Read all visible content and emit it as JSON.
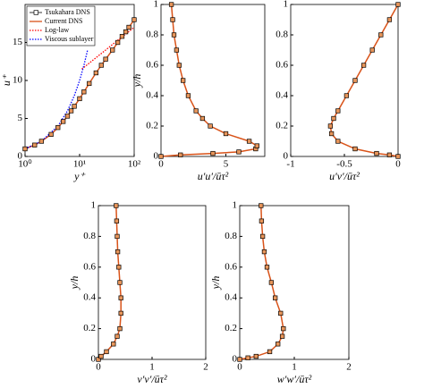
{
  "chart_data": [
    {
      "type": "line",
      "xscale": "log",
      "xlabel": "y⁺",
      "ylabel": "u⁺",
      "legend": "upper left",
      "xlim": [
        1,
        100
      ],
      "xticks": [
        {
          "value": 1,
          "label": "10⁰"
        },
        {
          "value": 10,
          "label": "10¹"
        },
        {
          "value": 100,
          "label": "10²"
        }
      ],
      "ylim": [
        0,
        20
      ],
      "yticks": [
        0,
        5,
        10,
        15
      ],
      "series": [
        {
          "name": "Tsukahara DNS",
          "style": "marker",
          "color": "#e8955a",
          "x": [
            1,
            1.5,
            2,
            3,
            4,
            5,
            6,
            7,
            8,
            10,
            12,
            15,
            20,
            25,
            30,
            40,
            50,
            60,
            70,
            80,
            100
          ],
          "y": [
            1,
            1.5,
            2,
            2.9,
            3.8,
            4.6,
            5.3,
            6,
            6.6,
            7.6,
            8.5,
            9.6,
            11,
            12,
            12.8,
            14,
            15,
            15.8,
            16.4,
            17,
            18
          ]
        },
        {
          "name": "Current DNS",
          "style": "solid",
          "color": "#d95319",
          "x": [
            1,
            1.5,
            2,
            3,
            4,
            5,
            6,
            7,
            8,
            10,
            12,
            15,
            20,
            25,
            30,
            40,
            50,
            60,
            70,
            80,
            100
          ],
          "y": [
            1,
            1.5,
            2,
            2.9,
            3.8,
            4.6,
            5.3,
            6,
            6.6,
            7.6,
            8.5,
            9.6,
            11,
            12,
            12.8,
            14,
            15,
            15.8,
            16.4,
            17,
            18
          ]
        },
        {
          "name": "Log-law",
          "style": "dotted",
          "color": "#ff0000",
          "x": [
            11,
            20,
            30,
            50,
            70,
            100
          ],
          "y": [
            11.5,
            13,
            14,
            15.3,
            16.1,
            17
          ]
        },
        {
          "name": "Viscous sublayer",
          "style": "dotted",
          "color": "#0000ff",
          "x": [
            1,
            2,
            4,
            6,
            8,
            10,
            12,
            14
          ],
          "y": [
            1,
            2,
            4,
            6,
            8,
            10,
            12,
            14
          ]
        }
      ]
    },
    {
      "type": "line",
      "xlabel": "u′u′/ūτ²",
      "ylabel": "y/h",
      "xlim": [
        0,
        8
      ],
      "xticks": [
        0,
        5
      ],
      "ylim": [
        0,
        1
      ],
      "yticks": [
        0,
        0.2,
        0.4,
        0.6,
        0.8,
        1
      ],
      "series": [
        {
          "name": "Tsukahara DNS",
          "style": "marker",
          "color": "#e8955a",
          "x": [
            0,
            1.5,
            4,
            6,
            7.3,
            7.4,
            6.8,
            5,
            3.8,
            3.2,
            2.7,
            2.1,
            1.7,
            1.4,
            1.2,
            1,
            0.9,
            0.8
          ],
          "y": [
            0,
            0.01,
            0.02,
            0.03,
            0.05,
            0.07,
            0.1,
            0.15,
            0.2,
            0.25,
            0.3,
            0.4,
            0.5,
            0.6,
            0.7,
            0.8,
            0.9,
            1
          ]
        },
        {
          "name": "Current DNS",
          "style": "solid",
          "color": "#d95319",
          "x": [
            0,
            1.5,
            4,
            6,
            7.3,
            7.4,
            6.8,
            5,
            3.8,
            3.2,
            2.7,
            2.1,
            1.7,
            1.4,
            1.2,
            1,
            0.9,
            0.8
          ],
          "y": [
            0,
            0.01,
            0.02,
            0.03,
            0.05,
            0.07,
            0.1,
            0.15,
            0.2,
            0.25,
            0.3,
            0.4,
            0.5,
            0.6,
            0.7,
            0.8,
            0.9,
            1
          ]
        }
      ]
    },
    {
      "type": "line",
      "xlabel": "u′v′/ūτ²",
      "ylabel": "",
      "xlim": [
        -1,
        0
      ],
      "xticks": [
        -1,
        -0.5,
        0
      ],
      "ylim": [
        0,
        1
      ],
      "yticks": [
        0,
        0.2,
        0.4,
        0.6,
        0.8,
        1
      ],
      "series": [
        {
          "name": "Tsukahara DNS",
          "style": "marker",
          "color": "#e8955a",
          "x": [
            0,
            -0.08,
            -0.2,
            -0.4,
            -0.56,
            -0.62,
            -0.63,
            -0.6,
            -0.56,
            -0.48,
            -0.4,
            -0.32,
            -0.24,
            -0.16,
            -0.08,
            0
          ],
          "y": [
            0,
            0.01,
            0.02,
            0.05,
            0.1,
            0.15,
            0.2,
            0.25,
            0.3,
            0.4,
            0.5,
            0.6,
            0.7,
            0.8,
            0.9,
            1
          ]
        },
        {
          "name": "Current DNS",
          "style": "solid",
          "color": "#d95319",
          "x": [
            0,
            -0.08,
            -0.2,
            -0.4,
            -0.56,
            -0.62,
            -0.63,
            -0.6,
            -0.56,
            -0.48,
            -0.4,
            -0.32,
            -0.24,
            -0.16,
            -0.08,
            0
          ],
          "y": [
            0,
            0.01,
            0.02,
            0.05,
            0.1,
            0.15,
            0.2,
            0.25,
            0.3,
            0.4,
            0.5,
            0.6,
            0.7,
            0.8,
            0.9,
            1
          ]
        }
      ]
    },
    {
      "type": "line",
      "xlabel": "v′v′/ūτ²",
      "ylabel": "y/h",
      "xlim": [
        0,
        2
      ],
      "xticks": [
        0,
        1,
        2
      ],
      "ylim": [
        0,
        1
      ],
      "yticks": [
        0,
        0.2,
        0.4,
        0.6,
        0.8,
        1
      ],
      "series": [
        {
          "name": "Tsukahara DNS",
          "style": "marker",
          "color": "#e8955a",
          "x": [
            0,
            0.05,
            0.15,
            0.28,
            0.35,
            0.4,
            0.42,
            0.42,
            0.4,
            0.38,
            0.36,
            0.35,
            0.34,
            0.33
          ],
          "y": [
            0,
            0.02,
            0.05,
            0.1,
            0.15,
            0.2,
            0.3,
            0.4,
            0.5,
            0.6,
            0.7,
            0.8,
            0.9,
            1
          ]
        },
        {
          "name": "Current DNS",
          "style": "solid",
          "color": "#d95319",
          "x": [
            0,
            0.05,
            0.15,
            0.28,
            0.35,
            0.4,
            0.42,
            0.42,
            0.4,
            0.38,
            0.36,
            0.35,
            0.34,
            0.33
          ],
          "y": [
            0,
            0.02,
            0.05,
            0.1,
            0.15,
            0.2,
            0.3,
            0.4,
            0.5,
            0.6,
            0.7,
            0.8,
            0.9,
            1
          ]
        }
      ]
    },
    {
      "type": "line",
      "xlabel": "w′w′/ūτ²",
      "ylabel": "y/h",
      "xlim": [
        0,
        2
      ],
      "xticks": [
        0,
        1,
        2
      ],
      "ylim": [
        0,
        1
      ],
      "yticks": [
        0,
        0.2,
        0.4,
        0.6,
        0.8,
        1
      ],
      "series": [
        {
          "name": "Tsukahara DNS",
          "style": "marker",
          "color": "#e8955a",
          "x": [
            0,
            0.15,
            0.3,
            0.55,
            0.7,
            0.78,
            0.8,
            0.75,
            0.65,
            0.58,
            0.5,
            0.45,
            0.42,
            0.4,
            0.39
          ],
          "y": [
            0,
            0.01,
            0.02,
            0.05,
            0.1,
            0.15,
            0.2,
            0.3,
            0.4,
            0.5,
            0.6,
            0.7,
            0.8,
            0.9,
            1
          ]
        },
        {
          "name": "Current DNS",
          "style": "solid",
          "color": "#d95319",
          "x": [
            0,
            0.15,
            0.3,
            0.55,
            0.7,
            0.78,
            0.8,
            0.75,
            0.65,
            0.58,
            0.5,
            0.45,
            0.42,
            0.4,
            0.39
          ],
          "y": [
            0,
            0.01,
            0.02,
            0.05,
            0.1,
            0.15,
            0.2,
            0.3,
            0.4,
            0.5,
            0.6,
            0.7,
            0.8,
            0.9,
            1
          ]
        }
      ]
    }
  ]
}
